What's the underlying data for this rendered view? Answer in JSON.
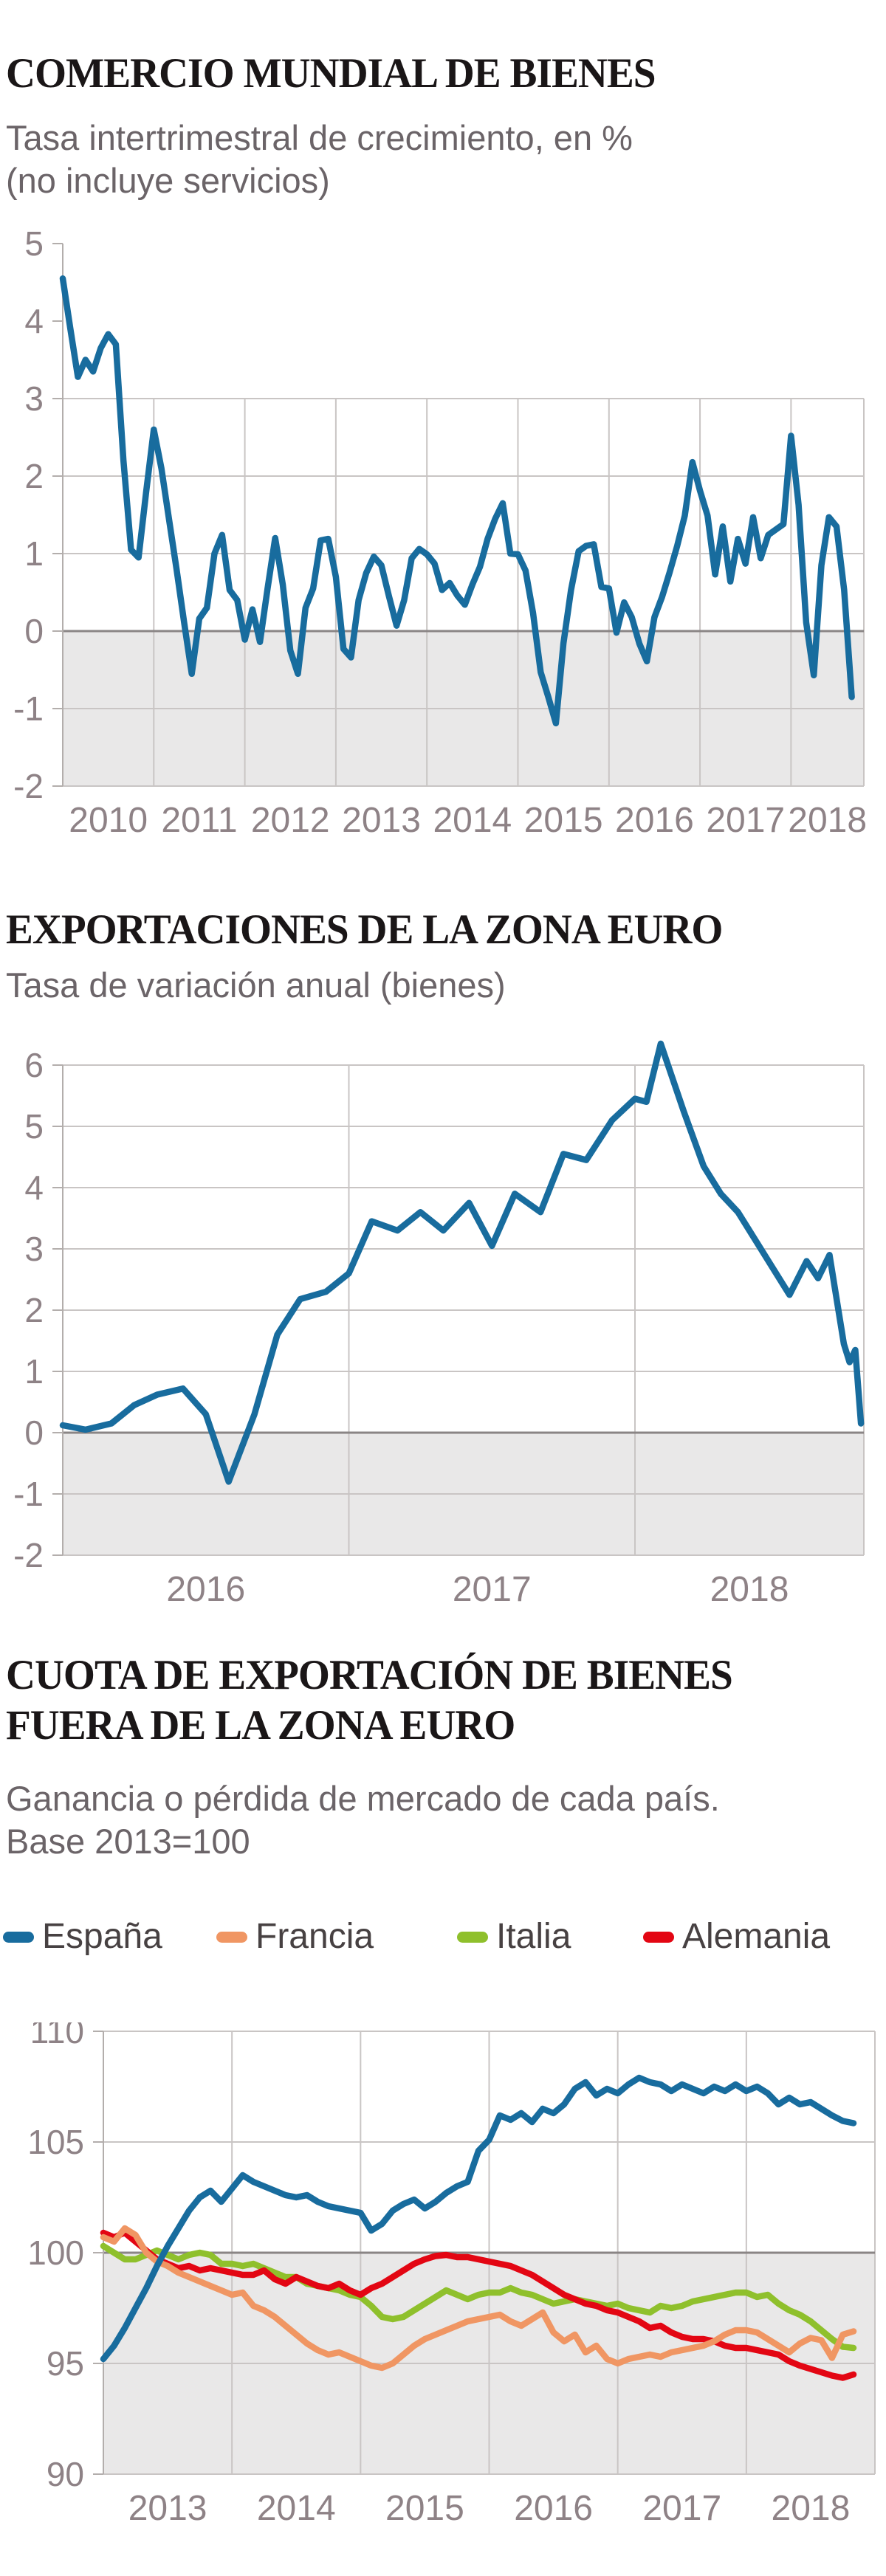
{
  "figures": [
    {
      "title": "COMERCIO MUNDIAL DE BIENES",
      "subtitle_line1": "Tasa intertrimestral de crecimiento, en %",
      "subtitle_line2": "(no incluye servicios)"
    },
    {
      "title": "EXPORTACIONES DE LA ZONA EURO",
      "subtitle_line1": "Tasa de variación anual (bienes)"
    },
    {
      "title_line1": "CUOTA DE EXPORTACIÓN DE BIENES",
      "title_line2": "FUERA DE LA ZONA EURO",
      "subtitle_line1": "Ganancia o pérdida de mercado de cada país.",
      "subtitle_line2": "Base 2013=100",
      "legend": [
        {
          "label": "España",
          "color": "#186c9e",
          "x": 4
        },
        {
          "label": "Francia",
          "color": "#f09663",
          "x": 293
        },
        {
          "label": "Italia",
          "color": "#8fc02c",
          "x": 619
        },
        {
          "label": "Alemania",
          "color": "#e30613",
          "x": 871
        }
      ]
    }
  ],
  "colors": {
    "shade": "#e9e8e8",
    "grid_light": "#c9c5c4",
    "grid_dark": "#8a8585",
    "axis": "#b3aeac",
    "tick_text": "#8e8286",
    "line_blue": "#186c9e"
  },
  "chart_data": [
    {
      "type": "line",
      "title": "COMERCIO MUNDIAL DE BIENES",
      "ylabel": "Tasa intertrimestral de crecimiento, en %",
      "xlim": [
        2010,
        2018.8
      ],
      "ylim": [
        -2,
        5
      ],
      "base_value": 0,
      "y_ticks": [
        5,
        4,
        3,
        2,
        1,
        0,
        -1,
        -2
      ],
      "y_gridlines": [
        3,
        2,
        1,
        -1,
        -2
      ],
      "x_gridline_years": [
        2011,
        2012,
        2013,
        2014,
        2015,
        2016,
        2017,
        2018
      ],
      "x_tick_years": [
        2010,
        2011,
        2012,
        2013,
        2014,
        2015,
        2016,
        2017,
        2018
      ],
      "x_tick_labels": [
        "2010",
        "2011",
        "2012",
        "2013",
        "2014",
        "2015",
        "2016",
        "2017",
        "2018"
      ],
      "legend_position": "none",
      "grid": true,
      "series": [
        {
          "name": "Comercio mundial de bienes",
          "color": "#186c9e",
          "x_start": 2010.0,
          "x_step_months": 1,
          "values": [
            4.55,
            3.9,
            3.28,
            3.5,
            3.35,
            3.65,
            3.83,
            3.7,
            2.2,
            1.05,
            0.95,
            1.8,
            2.6,
            2.1,
            1.45,
            0.8,
            0.11,
            -0.55,
            0.16,
            0.3,
            1.0,
            1.24,
            0.53,
            0.4,
            -0.11,
            0.28,
            -0.14,
            0.55,
            1.2,
            0.6,
            -0.25,
            -0.55,
            0.3,
            0.55,
            1.17,
            1.19,
            0.7,
            -0.23,
            -0.34,
            0.4,
            0.75,
            0.96,
            0.85,
            0.45,
            0.07,
            0.4,
            0.94,
            1.06,
            0.99,
            0.87,
            0.53,
            0.62,
            0.46,
            0.34,
            0.6,
            0.83,
            1.19,
            1.45,
            1.65,
            1.0,
            0.99,
            0.78,
            0.23,
            -0.53,
            -0.85,
            -1.19,
            -0.16,
            0.53,
            1.03,
            1.1,
            1.12,
            0.57,
            0.55,
            -0.02,
            0.37,
            0.18,
            -0.16,
            -0.39,
            0.18,
            0.44,
            0.76,
            1.1,
            1.49,
            2.18,
            1.81,
            1.49,
            0.73,
            1.35,
            0.64,
            1.19,
            0.87,
            1.47,
            0.94,
            1.24,
            1.31,
            1.38,
            2.52,
            1.63,
            0.11,
            -0.57,
            0.85,
            1.47,
            1.35,
            0.53,
            -0.85
          ]
        }
      ]
    },
    {
      "type": "line",
      "title": "EXPORTACIONES DE LA ZONA EURO",
      "ylabel": "Tasa de variación anual (bienes)",
      "xlim": [
        2016,
        2018.8
      ],
      "ylim": [
        -2,
        6
      ],
      "base_value": 0,
      "y_ticks": [
        6,
        5,
        4,
        3,
        2,
        1,
        0,
        -1,
        -2
      ],
      "y_gridlines": [
        6,
        5,
        4,
        3,
        2,
        1,
        -1,
        -2
      ],
      "x_gridline_years": [
        2017,
        2018
      ],
      "x_tick_years": [
        2016,
        2017,
        2018
      ],
      "x_tick_labels": [
        "2016",
        "2017",
        "2018"
      ],
      "legend_position": "none",
      "grid": true,
      "series": [
        {
          "name": "Exportaciones zona euro",
          "color": "#186c9e",
          "points": [
            [
              2016.0,
              0.12
            ],
            [
              2016.08,
              0.05
            ],
            [
              2016.17,
              0.15
            ],
            [
              2016.25,
              0.45
            ],
            [
              2016.33,
              0.62
            ],
            [
              2016.42,
              0.72
            ],
            [
              2016.5,
              0.3
            ],
            [
              2016.58,
              -0.8
            ],
            [
              2016.67,
              0.3
            ],
            [
              2016.75,
              1.6
            ],
            [
              2016.83,
              2.18
            ],
            [
              2016.92,
              2.3
            ],
            [
              2017.0,
              2.6
            ],
            [
              2017.08,
              3.45
            ],
            [
              2017.17,
              3.3
            ],
            [
              2017.25,
              3.6
            ],
            [
              2017.33,
              3.3
            ],
            [
              2017.42,
              3.75
            ],
            [
              2017.5,
              3.05
            ],
            [
              2017.58,
              3.9
            ],
            [
              2017.67,
              3.6
            ],
            [
              2017.75,
              4.55
            ],
            [
              2017.83,
              4.45
            ],
            [
              2017.92,
              5.1
            ],
            [
              2018.0,
              5.45
            ],
            [
              2018.04,
              5.4
            ],
            [
              2018.09,
              6.35
            ],
            [
              2018.17,
              5.25
            ],
            [
              2018.24,
              4.35
            ],
            [
              2018.3,
              3.9
            ],
            [
              2018.36,
              3.6
            ],
            [
              2018.42,
              3.15
            ],
            [
              2018.48,
              2.7
            ],
            [
              2018.54,
              2.25
            ],
            [
              2018.6,
              2.8
            ],
            [
              2018.64,
              2.52
            ],
            [
              2018.68,
              2.9
            ],
            [
              2018.73,
              1.45
            ],
            [
              2018.75,
              1.15
            ],
            [
              2018.77,
              1.35
            ],
            [
              2018.79,
              0.15
            ]
          ]
        }
      ]
    },
    {
      "type": "line",
      "title": "CUOTA DE EXPORTACIÓN DE BIENES FUERA DE LA ZONA EURO",
      "ylabel": "Ganancia o pérdida de mercado de cada país. Base 2013=100",
      "xlim": [
        2013,
        2019
      ],
      "ylim": [
        90,
        110
      ],
      "base_value": 100,
      "y_ticks": [
        110,
        105,
        100,
        95,
        90
      ],
      "y_gridlines": [
        110,
        105,
        95,
        90
      ],
      "x_gridline_years": [
        2014,
        2015,
        2016,
        2017,
        2018
      ],
      "x_tick_years": [
        2013,
        2014,
        2015,
        2016,
        2017,
        2018
      ],
      "x_tick_labels": [
        "2013",
        "2014",
        "2015",
        "2016",
        "2017",
        "2018"
      ],
      "legend_position": "top",
      "grid": true,
      "series": [
        {
          "name": "Italia",
          "color": "#8fc02c",
          "x_start": 2013.0,
          "x_step_months": 1,
          "values": [
            100.3,
            100.0,
            99.7,
            99.7,
            99.9,
            100.1,
            99.9,
            99.7,
            99.9,
            100.0,
            99.9,
            99.5,
            99.5,
            99.4,
            99.5,
            99.3,
            99.1,
            98.9,
            98.9,
            98.6,
            98.5,
            98.4,
            98.3,
            98.1,
            98.0,
            97.6,
            97.1,
            97.0,
            97.1,
            97.4,
            97.7,
            98.0,
            98.3,
            98.1,
            97.9,
            98.1,
            98.2,
            98.2,
            98.4,
            98.2,
            98.1,
            97.9,
            97.7,
            97.8,
            97.9,
            97.8,
            97.7,
            97.6,
            97.7,
            97.5,
            97.4,
            97.3,
            97.6,
            97.5,
            97.6,
            97.8,
            97.9,
            98.0,
            98.1,
            98.2,
            98.2,
            98.0,
            98.1,
            97.7,
            97.4,
            97.2,
            96.9,
            96.5,
            96.1,
            95.75,
            95.7
          ]
        },
        {
          "name": "Alemania",
          "color": "#e30613",
          "x_start": 2013.0,
          "x_step_months": 1,
          "values": [
            100.9,
            100.7,
            100.9,
            100.5,
            100.1,
            99.7,
            99.5,
            99.3,
            99.4,
            99.2,
            99.3,
            99.2,
            99.1,
            99.0,
            99.0,
            99.2,
            98.8,
            98.6,
            98.9,
            98.7,
            98.5,
            98.4,
            98.6,
            98.3,
            98.1,
            98.4,
            98.6,
            98.9,
            99.2,
            99.5,
            99.7,
            99.85,
            99.9,
            99.8,
            99.8,
            99.7,
            99.6,
            99.5,
            99.4,
            99.2,
            99.0,
            98.7,
            98.4,
            98.1,
            97.9,
            97.7,
            97.6,
            97.4,
            97.3,
            97.1,
            96.9,
            96.6,
            96.7,
            96.4,
            96.2,
            96.1,
            96.1,
            96.0,
            95.8,
            95.7,
            95.7,
            95.6,
            95.5,
            95.4,
            95.1,
            94.9,
            94.75,
            94.6,
            94.45,
            94.35,
            94.5
          ]
        },
        {
          "name": "Francia",
          "color": "#f09663",
          "x_start": 2013.0,
          "x_step_months": 1,
          "values": [
            100.7,
            100.5,
            101.1,
            100.8,
            100.0,
            99.6,
            99.4,
            99.1,
            98.9,
            98.7,
            98.5,
            98.3,
            98.1,
            98.2,
            97.6,
            97.4,
            97.1,
            96.7,
            96.3,
            95.9,
            95.6,
            95.4,
            95.5,
            95.3,
            95.1,
            94.9,
            94.8,
            95.0,
            95.4,
            95.8,
            96.1,
            96.3,
            96.5,
            96.7,
            96.9,
            97.0,
            97.1,
            97.2,
            96.9,
            96.7,
            97.0,
            97.3,
            96.4,
            96.0,
            96.3,
            95.5,
            95.8,
            95.2,
            95.0,
            95.2,
            95.3,
            95.4,
            95.3,
            95.5,
            95.6,
            95.7,
            95.8,
            96.0,
            96.3,
            96.5,
            96.5,
            96.4,
            96.1,
            95.8,
            95.5,
            95.9,
            96.15,
            96.05,
            95.25,
            96.3,
            96.45
          ]
        },
        {
          "name": "España",
          "color": "#186c9e",
          "x_start": 2013.0,
          "x_step_months": 1,
          "values": [
            95.2,
            95.8,
            96.6,
            97.5,
            98.4,
            99.4,
            100.3,
            101.1,
            101.9,
            102.5,
            102.8,
            102.3,
            102.9,
            103.5,
            103.2,
            103.0,
            102.8,
            102.6,
            102.5,
            102.6,
            102.3,
            102.1,
            102.0,
            101.9,
            101.8,
            101.0,
            101.3,
            101.9,
            102.2,
            102.4,
            102.0,
            102.3,
            102.7,
            103.0,
            103.2,
            104.6,
            105.1,
            106.2,
            106.0,
            106.3,
            105.9,
            106.5,
            106.3,
            106.7,
            107.4,
            107.7,
            107.1,
            107.4,
            107.2,
            107.6,
            107.9,
            107.7,
            107.6,
            107.3,
            107.6,
            107.4,
            107.2,
            107.5,
            107.3,
            107.6,
            107.3,
            107.5,
            107.2,
            106.7,
            107.0,
            106.7,
            106.8,
            106.5,
            106.2,
            105.95,
            105.85
          ]
        }
      ]
    }
  ]
}
